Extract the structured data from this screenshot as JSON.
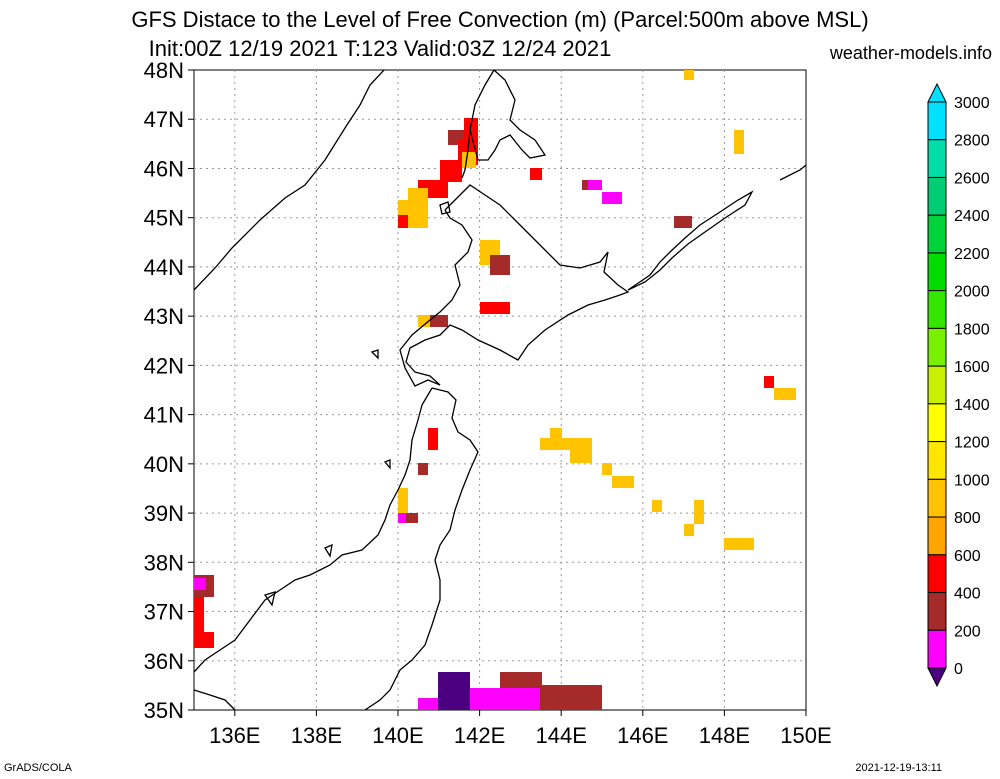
{
  "title_line1": "GFS Distace to the Level of Free Convection (m) (Parcel:500m above MSL)",
  "title_line2": "Init:00Z 12/19 2021 T:123 Valid:03Z 12/24 2021",
  "site": "weather-models.info",
  "footer_left": "GrADS/COLA",
  "footer_right": "2021-12-19-13:11",
  "lat_labels": [
    "48N",
    "47N",
    "46N",
    "45N",
    "44N",
    "43N",
    "42N",
    "41N",
    "40N",
    "39N",
    "38N",
    "37N",
    "36N",
    "35N"
  ],
  "lon_labels": [
    "136E",
    "138E",
    "140E",
    "142E",
    "144E",
    "146E",
    "148E",
    "150E"
  ],
  "colorbar": {
    "levels": [
      "3000",
      "2800",
      "2600",
      "2400",
      "2200",
      "2000",
      "1800",
      "1600",
      "1400",
      "1200",
      "1000",
      "800",
      "600",
      "400",
      "200",
      "0"
    ],
    "colors": [
      "#00e1ff",
      "#00dcaa",
      "#00cd74",
      "#00d23c",
      "#00dc00",
      "#34e600",
      "#78f000",
      "#c8f000",
      "#ffff00",
      "#ffe600",
      "#ffc300",
      "#ffa500",
      "#ff0000",
      "#a52a2a",
      "#ff00ff",
      "#4b0082"
    ]
  }
}
